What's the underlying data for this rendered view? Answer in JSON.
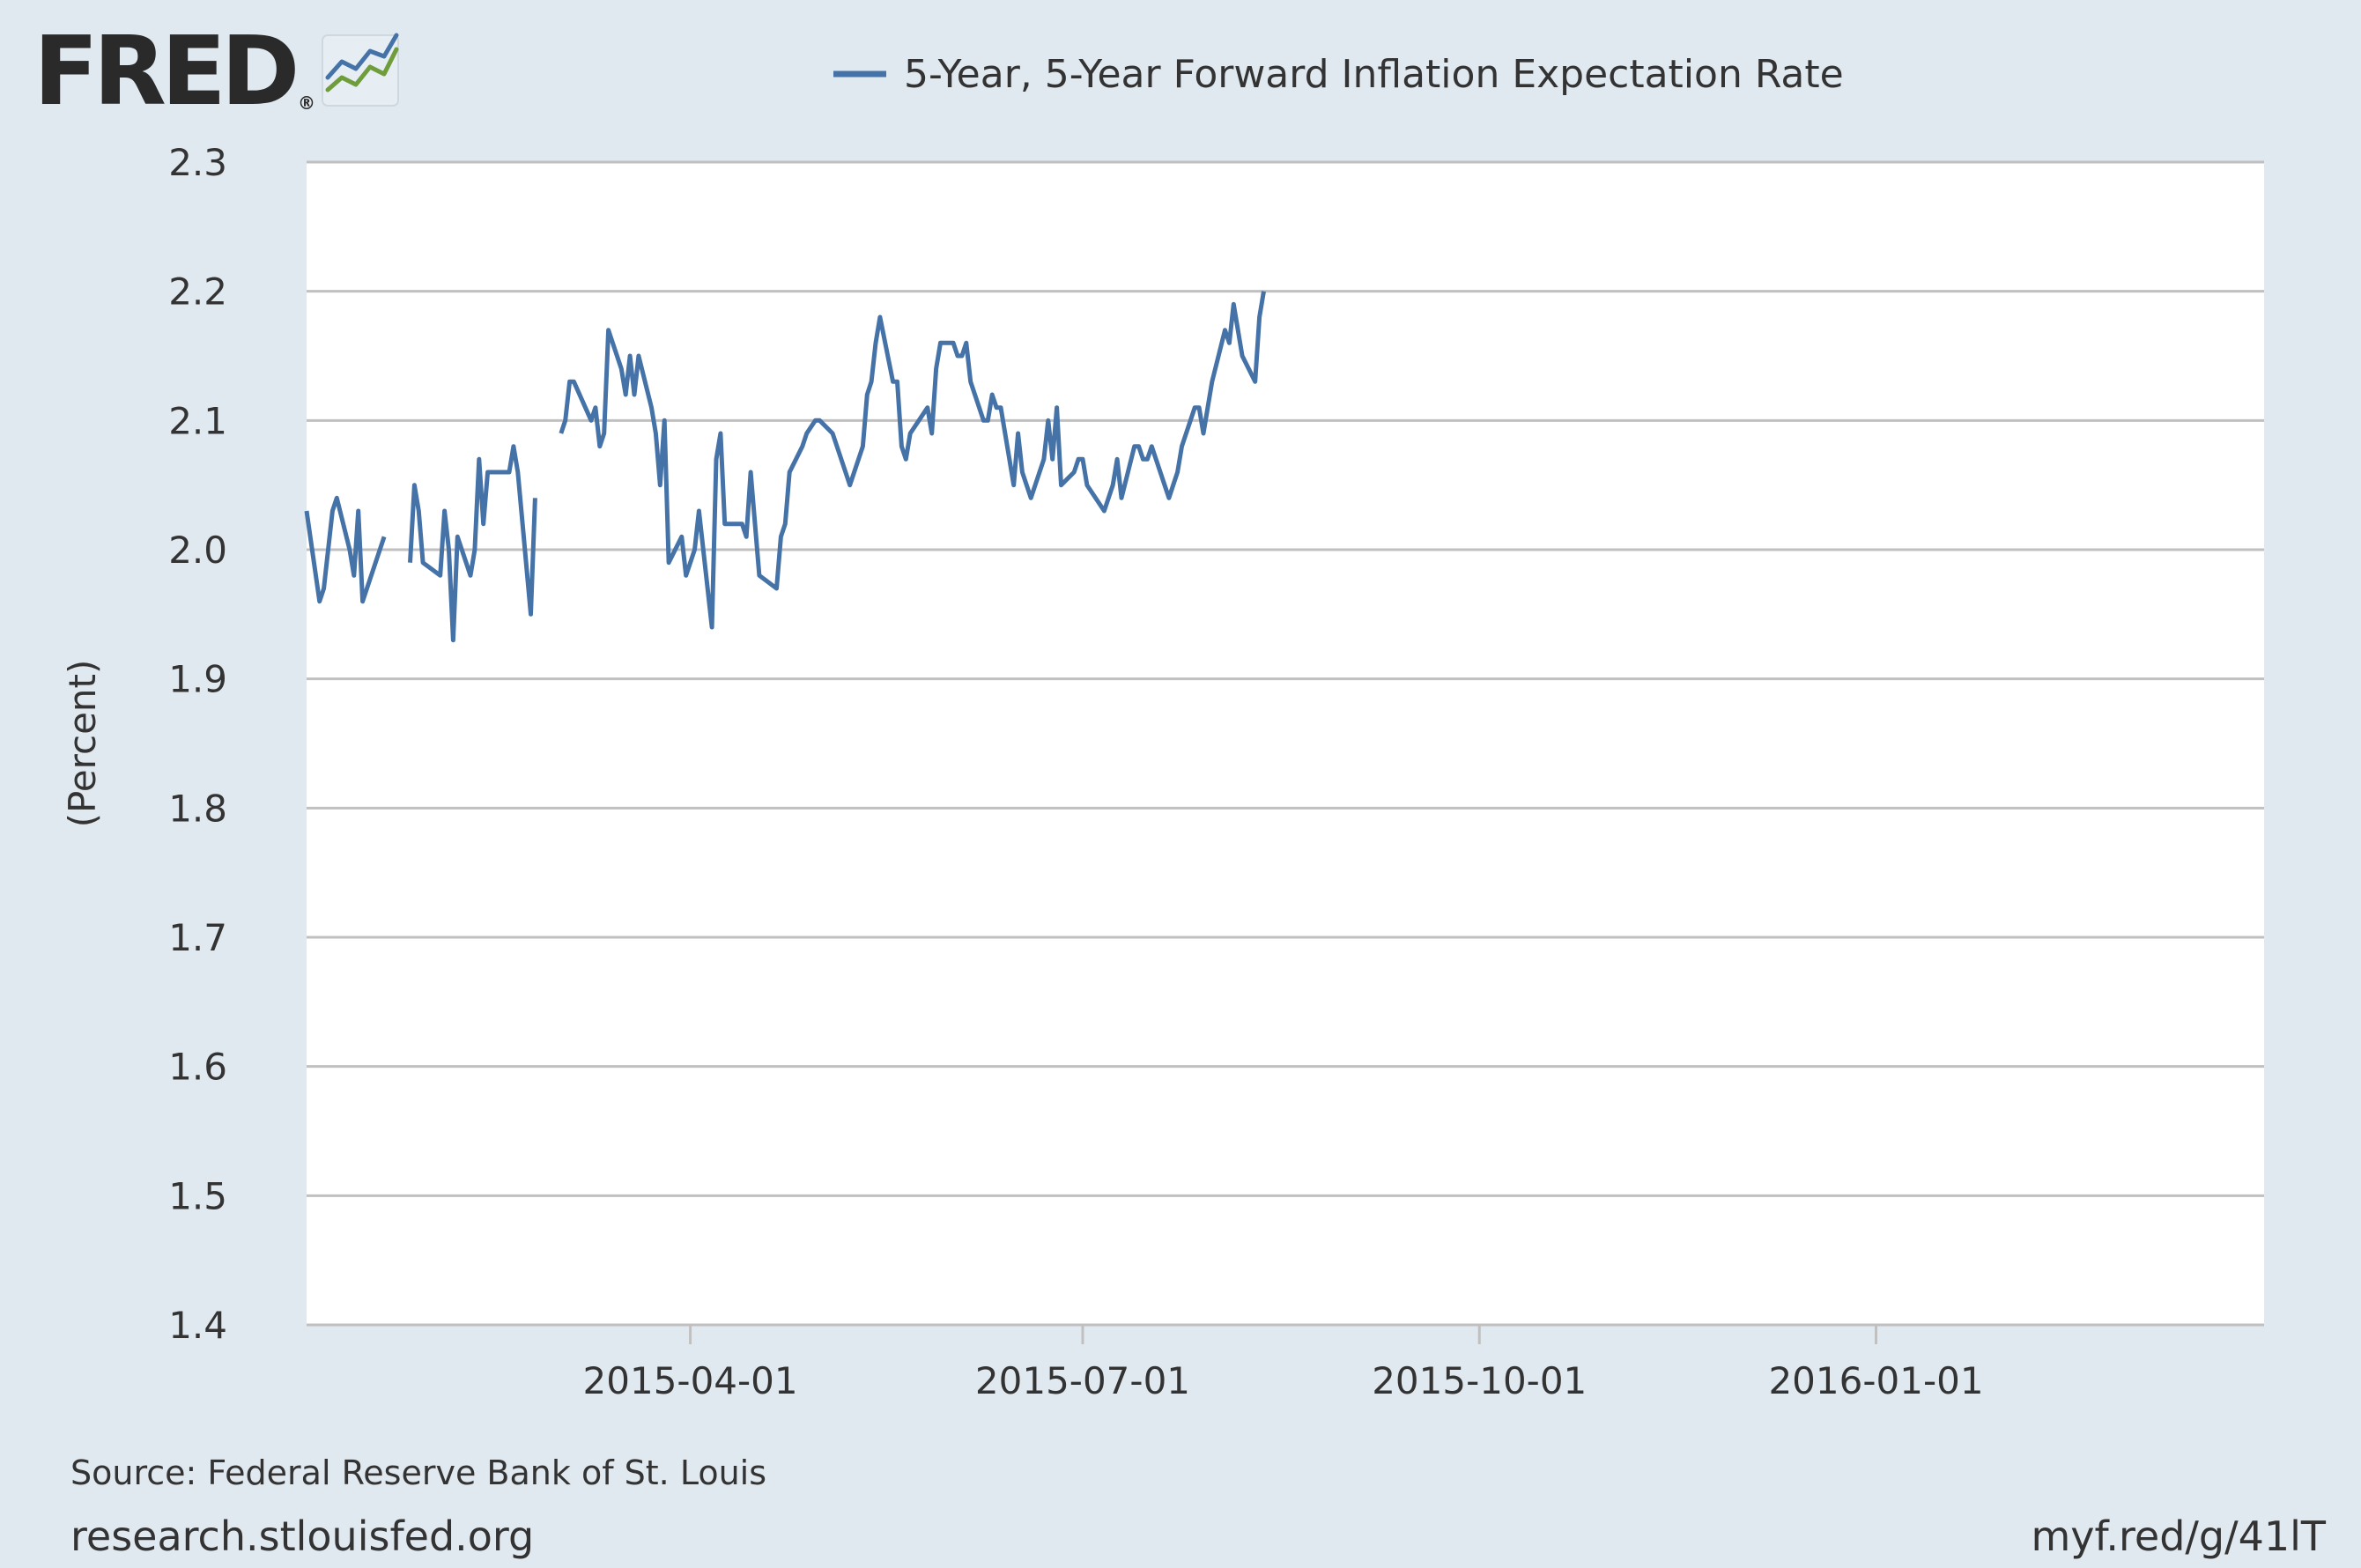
{
  "brand": {
    "name": "FRED",
    "registered": "®",
    "logo_icon": "fred-chart-logo-icon"
  },
  "legend": {
    "label": "5-Year, 5-Year Forward Inflation Expectation Rate"
  },
  "footer": {
    "source": "Source: Federal Reserve Bank of St. Louis",
    "site": "research.stlouisfed.org",
    "short_link": "myf.red/g/41lT"
  },
  "colors": {
    "background": "#e1e9f0",
    "plot_background": "#ffffff",
    "line": "#4572a7",
    "gridline": "#c0c0c0",
    "logo_green": "#709d3c",
    "logo_blue": "#4572a7"
  },
  "chart_data": {
    "type": "line",
    "title": "",
    "xlabel": "",
    "ylabel": "(Percent)",
    "ylim": [
      1.4,
      2.3
    ],
    "yticks": [
      1.4,
      1.5,
      1.6,
      1.7,
      1.8,
      1.9,
      2.0,
      2.1,
      2.2,
      2.3
    ],
    "ytick_labels": [
      "1.4",
      "1.5",
      "1.6",
      "1.7",
      "1.8",
      "1.9",
      "2.0",
      "2.1",
      "2.2",
      "2.3"
    ],
    "xlim": [
      "2015-01-02",
      "2016-03-31"
    ],
    "xticks": [
      "2015-04-01",
      "2015-07-01",
      "2015-10-01",
      "2016-01-01"
    ],
    "grid": true,
    "legend_position": "top",
    "series": [
      {
        "name": "5-Year, 5-Year Forward Inflation Expectation Rate",
        "points": [
          [
            "2015-01-02",
            2.03
          ],
          [
            "2015-01-05",
            1.96
          ],
          [
            "2015-01-06",
            1.97
          ],
          [
            "2015-01-07",
            2.0
          ],
          [
            "2015-01-08",
            2.03
          ],
          [
            "2015-01-09",
            2.04
          ],
          [
            "2015-01-12",
            2.0
          ],
          [
            "2015-01-13",
            1.98
          ],
          [
            "2015-01-14",
            2.03
          ],
          [
            "2015-01-15",
            1.96
          ],
          [
            "2015-01-16",
            1.97
          ],
          [
            "2015-01-20",
            2.01
          ],
          [
            "2015-01-26",
            1.99
          ],
          [
            "2015-01-27",
            2.05
          ],
          [
            "2015-01-28",
            2.03
          ],
          [
            "2015-01-29",
            1.99
          ],
          [
            "2015-02-02",
            1.98
          ],
          [
            "2015-02-03",
            2.03
          ],
          [
            "2015-02-04",
            2.0
          ],
          [
            "2015-02-05",
            1.93
          ],
          [
            "2015-02-06",
            2.01
          ],
          [
            "2015-02-09",
            1.98
          ],
          [
            "2015-02-10",
            2.0
          ],
          [
            "2015-02-11",
            2.07
          ],
          [
            "2015-02-12",
            2.02
          ],
          [
            "2015-02-13",
            2.06
          ],
          [
            "2015-02-17",
            2.06
          ],
          [
            "2015-02-18",
            2.06
          ],
          [
            "2015-02-19",
            2.08
          ],
          [
            "2015-02-20",
            2.06
          ],
          [
            "2015-02-23",
            1.95
          ],
          [
            "2015-02-24",
            2.04
          ],
          [
            "2015-03-02",
            2.09
          ],
          [
            "2015-03-03",
            2.1
          ],
          [
            "2015-03-04",
            2.13
          ],
          [
            "2015-03-05",
            2.13
          ],
          [
            "2015-03-09",
            2.1
          ],
          [
            "2015-03-10",
            2.11
          ],
          [
            "2015-03-11",
            2.08
          ],
          [
            "2015-03-12",
            2.09
          ],
          [
            "2015-03-13",
            2.17
          ],
          [
            "2015-03-16",
            2.14
          ],
          [
            "2015-03-17",
            2.12
          ],
          [
            "2015-03-18",
            2.15
          ],
          [
            "2015-03-19",
            2.12
          ],
          [
            "2015-03-20",
            2.15
          ],
          [
            "2015-03-23",
            2.11
          ],
          [
            "2015-03-24",
            2.09
          ],
          [
            "2015-03-25",
            2.05
          ],
          [
            "2015-03-26",
            2.1
          ],
          [
            "2015-03-27",
            1.99
          ],
          [
            "2015-03-30",
            2.01
          ],
          [
            "2015-03-31",
            1.98
          ],
          [
            "2015-04-02",
            2.0
          ],
          [
            "2015-04-03",
            2.03
          ],
          [
            "2015-04-06",
            1.94
          ],
          [
            "2015-04-07",
            2.07
          ],
          [
            "2015-04-08",
            2.09
          ],
          [
            "2015-04-09",
            2.02
          ],
          [
            "2015-04-10",
            2.02
          ],
          [
            "2015-04-13",
            2.02
          ],
          [
            "2015-04-14",
            2.01
          ],
          [
            "2015-04-15",
            2.06
          ],
          [
            "2015-04-16",
            2.02
          ],
          [
            "2015-04-17",
            1.98
          ],
          [
            "2015-04-21",
            1.97
          ],
          [
            "2015-04-22",
            2.01
          ],
          [
            "2015-04-23",
            2.02
          ],
          [
            "2015-04-24",
            2.06
          ],
          [
            "2015-04-27",
            2.08
          ],
          [
            "2015-04-28",
            2.09
          ],
          [
            "2015-04-30",
            2.1
          ],
          [
            "2015-05-01",
            2.1
          ],
          [
            "2015-05-04",
            2.09
          ],
          [
            "2015-05-07",
            2.06
          ],
          [
            "2015-05-08",
            2.05
          ],
          [
            "2015-05-11",
            2.08
          ],
          [
            "2015-05-12",
            2.12
          ],
          [
            "2015-05-13",
            2.13
          ],
          [
            "2015-05-14",
            2.16
          ],
          [
            "2015-05-15",
            2.18
          ],
          [
            "2015-05-18",
            2.13
          ],
          [
            "2015-05-19",
            2.13
          ],
          [
            "2015-05-20",
            2.08
          ],
          [
            "2015-05-21",
            2.07
          ],
          [
            "2015-05-22",
            2.09
          ],
          [
            "2015-05-26",
            2.11
          ],
          [
            "2015-05-27",
            2.09
          ],
          [
            "2015-05-28",
            2.14
          ],
          [
            "2015-05-29",
            2.16
          ],
          [
            "2015-06-01",
            2.16
          ],
          [
            "2015-06-02",
            2.15
          ],
          [
            "2015-06-03",
            2.15
          ],
          [
            "2015-06-04",
            2.16
          ],
          [
            "2015-06-05",
            2.13
          ],
          [
            "2015-06-08",
            2.1
          ],
          [
            "2015-06-09",
            2.1
          ],
          [
            "2015-06-10",
            2.12
          ],
          [
            "2015-06-11",
            2.11
          ],
          [
            "2015-06-12",
            2.11
          ],
          [
            "2015-06-15",
            2.05
          ],
          [
            "2015-06-16",
            2.09
          ],
          [
            "2015-06-17",
            2.06
          ],
          [
            "2015-06-18",
            2.05
          ],
          [
            "2015-06-19",
            2.04
          ],
          [
            "2015-06-22",
            2.07
          ],
          [
            "2015-06-23",
            2.1
          ],
          [
            "2015-06-24",
            2.07
          ],
          [
            "2015-06-25",
            2.11
          ],
          [
            "2015-06-26",
            2.05
          ],
          [
            "2015-06-29",
            2.06
          ],
          [
            "2015-06-30",
            2.07
          ],
          [
            "2015-07-01",
            2.07
          ],
          [
            "2015-07-02",
            2.05
          ],
          [
            "2015-07-06",
            2.03
          ],
          [
            "2015-07-07",
            2.04
          ],
          [
            "2015-07-08",
            2.05
          ],
          [
            "2015-07-09",
            2.07
          ],
          [
            "2015-07-10",
            2.04
          ],
          [
            "2015-07-13",
            2.08
          ],
          [
            "2015-07-14",
            2.08
          ],
          [
            "2015-07-15",
            2.07
          ],
          [
            "2015-07-16",
            2.07
          ],
          [
            "2015-07-17",
            2.08
          ],
          [
            "2015-07-20",
            2.05
          ],
          [
            "2015-07-21",
            2.04
          ],
          [
            "2015-07-22",
            2.05
          ],
          [
            "2015-07-23",
            2.06
          ],
          [
            "2015-07-24",
            2.08
          ],
          [
            "2015-07-27",
            2.11
          ],
          [
            "2015-07-28",
            2.11
          ],
          [
            "2015-07-29",
            2.09
          ],
          [
            "2015-07-30",
            2.11
          ],
          [
            "2015-07-31",
            2.13
          ],
          [
            "2015-08-03",
            2.17
          ],
          [
            "2015-08-04",
            2.16
          ],
          [
            "2015-08-05",
            2.19
          ],
          [
            "2015-08-06",
            2.17
          ],
          [
            "2015-08-07",
            2.15
          ],
          [
            "2015-08-10",
            2.13
          ],
          [
            "2015-08-11",
            2.18
          ],
          [
            "2015-08-12",
            2.2
          ]
        ]
      }
    ]
  }
}
